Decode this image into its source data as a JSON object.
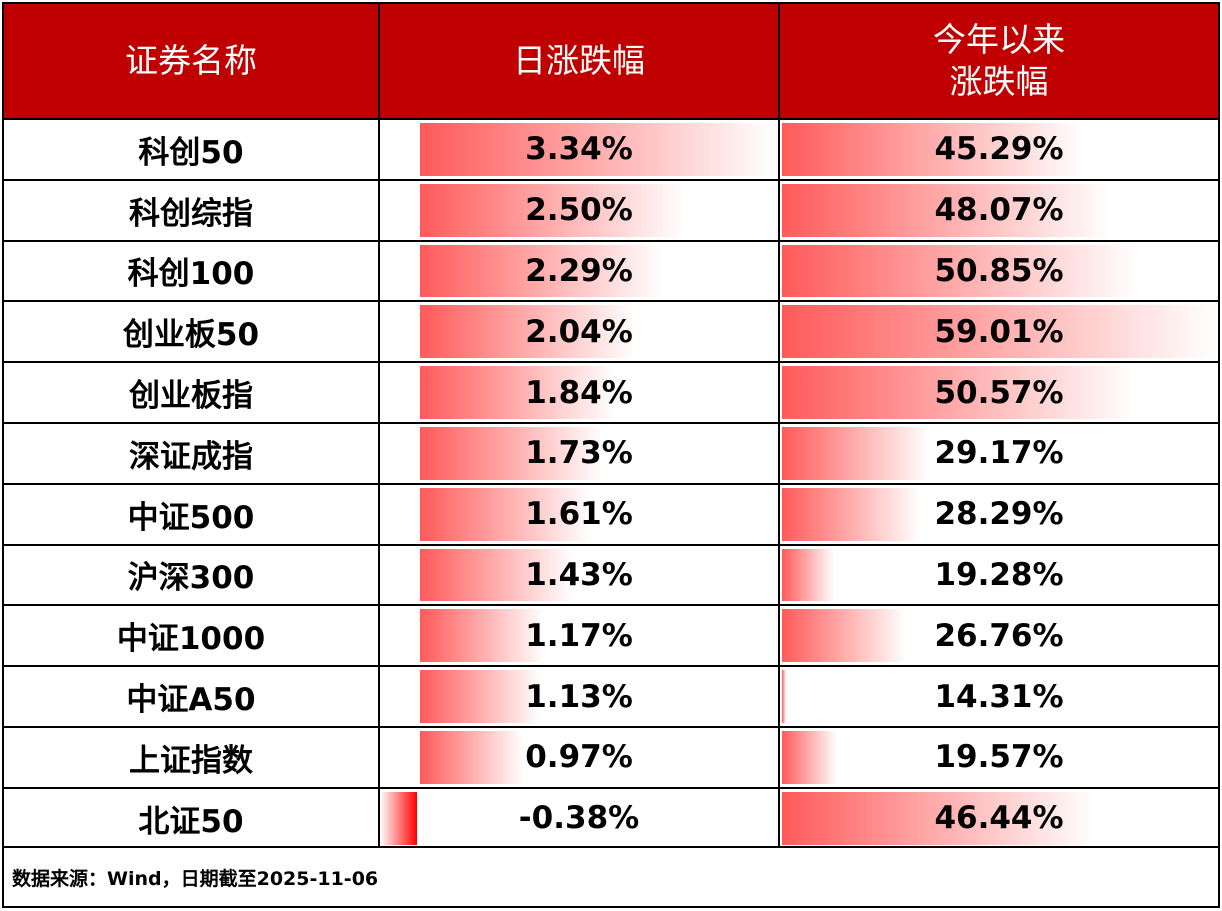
{
  "header": {
    "name": "证券名称",
    "daily": "日涨跌幅",
    "ytd_line1": "今年以来",
    "ytd_line2": "涨跌幅"
  },
  "colors": {
    "header_bg": "#c00000",
    "bar_positive": "#ff5a5a",
    "bar_negative": "#ff0000"
  },
  "rows": [
    {
      "name": "科创50",
      "daily": "3.34%",
      "ytd": "45.29%",
      "daily_value": 3.34,
      "ytd_value": 45.29
    },
    {
      "name": "科创综指",
      "daily": "2.50%",
      "ytd": "48.07%",
      "daily_value": 2.5,
      "ytd_value": 48.07
    },
    {
      "name": "科创100",
      "daily": "2.29%",
      "ytd": "50.85%",
      "daily_value": 2.29,
      "ytd_value": 50.85
    },
    {
      "name": "创业板50",
      "daily": "2.04%",
      "ytd": "59.01%",
      "daily_value": 2.04,
      "ytd_value": 59.01
    },
    {
      "name": "创业板指",
      "daily": "1.84%",
      "ytd": "50.57%",
      "daily_value": 1.84,
      "ytd_value": 50.57
    },
    {
      "name": "深证成指",
      "daily": "1.73%",
      "ytd": "29.17%",
      "daily_value": 1.73,
      "ytd_value": 29.17
    },
    {
      "name": "中证500",
      "daily": "1.61%",
      "ytd": "28.29%",
      "daily_value": 1.61,
      "ytd_value": 28.29
    },
    {
      "name": "沪深300",
      "daily": "1.43%",
      "ytd": "19.28%",
      "daily_value": 1.43,
      "ytd_value": 19.28
    },
    {
      "name": "中证1000",
      "daily": "1.17%",
      "ytd": "26.76%",
      "daily_value": 1.17,
      "ytd_value": 26.76
    },
    {
      "name": "中证A50",
      "daily": "1.13%",
      "ytd": "14.31%",
      "daily_value": 1.13,
      "ytd_value": 14.31
    },
    {
      "name": "上证指数",
      "daily": "0.97%",
      "ytd": "19.57%",
      "daily_value": 0.97,
      "ytd_value": 19.57
    },
    {
      "name": "北证50",
      "daily": "-0.38%",
      "ytd": "46.44%",
      "daily_value": -0.38,
      "ytd_value": 46.44
    }
  ],
  "footer": {
    "source": "数据来源：Wind，日期截至2025-11-06"
  }
}
